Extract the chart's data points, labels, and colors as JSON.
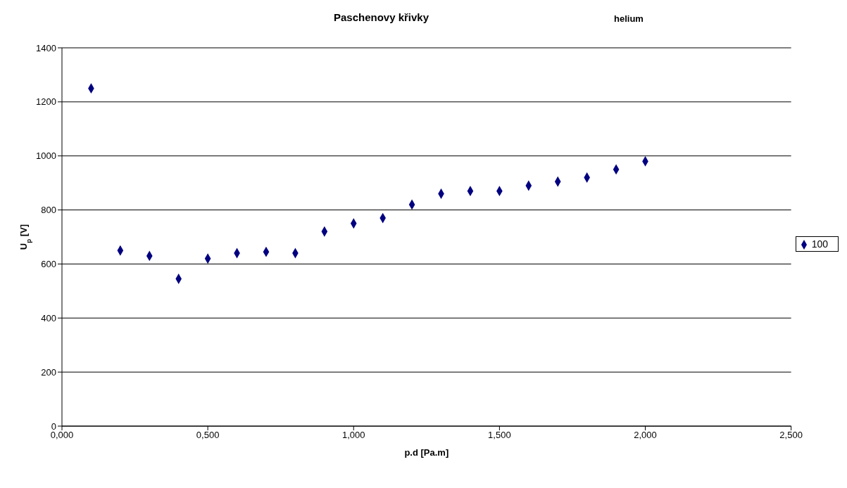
{
  "chart_data": {
    "type": "scatter",
    "title": "Paschenovy křivky",
    "subtitle": "helium",
    "xlabel": "p.d  [Pa.m]",
    "ylabel": "U$_{p}$ [V]",
    "x": [
      0.1,
      0.2,
      0.3,
      0.4,
      0.5,
      0.6,
      0.7,
      0.8,
      0.9,
      1.0,
      1.1,
      1.2,
      1.3,
      1.4,
      1.5,
      1.6,
      1.7,
      1.8,
      1.9,
      2.0
    ],
    "series": [
      {
        "name": "100",
        "color": "#000080",
        "values": [
          1250,
          650,
          630,
          545,
          620,
          640,
          645,
          640,
          720,
          750,
          770,
          820,
          860,
          870,
          870,
          890,
          905,
          920,
          950,
          980
        ]
      }
    ],
    "xlim": [
      0,
      2.5
    ],
    "xticks": [
      {
        "value": 0,
        "label": "0,000"
      },
      {
        "value": 0.5,
        "label": "0,500"
      },
      {
        "value": 1,
        "label": "1,000"
      },
      {
        "value": 1.5,
        "label": "1,500"
      },
      {
        "value": 2,
        "label": "2,000"
      },
      {
        "value": 2.5,
        "label": "2,500"
      }
    ],
    "ylim": [
      0,
      1400
    ],
    "yticks": [
      0,
      200,
      400,
      600,
      800,
      1000,
      1200,
      1400
    ],
    "grid": "y",
    "legend": "right",
    "marker": "diamond"
  }
}
